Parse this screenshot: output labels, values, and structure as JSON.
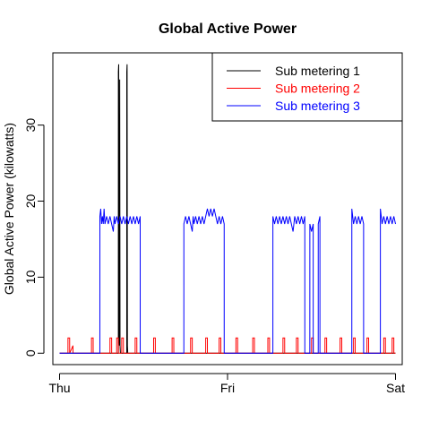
{
  "chart_data": {
    "type": "line",
    "title": "Global Active Power",
    "xlabel": "",
    "ylabel": "Global Active Power (kilowatts)",
    "x_tick_labels": [
      "Thu",
      "Fri",
      "Sat"
    ],
    "x_ticks": [
      0,
      1,
      2
    ],
    "y_ticks": [
      0,
      10,
      20,
      30
    ],
    "xlim": [
      -0.04,
      2.04
    ],
    "ylim": [
      -1.5,
      39.5
    ],
    "grid": false,
    "legend_position": "top-right",
    "series": [
      {
        "name": "Sub metering 1",
        "color": "#000000",
        "points": [
          [
            0.0,
            0
          ],
          [
            0.3499,
            0
          ],
          [
            0.35,
            37
          ],
          [
            0.352,
            38
          ],
          [
            0.354,
            2
          ],
          [
            0.356,
            1
          ],
          [
            0.358,
            36
          ],
          [
            0.36,
            1
          ],
          [
            0.362,
            0
          ],
          [
            0.3999,
            0
          ],
          [
            0.4,
            37
          ],
          [
            0.402,
            38
          ],
          [
            0.404,
            1
          ],
          [
            0.406,
            0
          ],
          [
            2.0,
            0
          ]
        ]
      },
      {
        "name": "Sub metering 2",
        "color": "#ff0000",
        "points": [
          [
            0.0,
            0
          ],
          [
            0.0499,
            0
          ],
          [
            0.05,
            2
          ],
          [
            0.06,
            2
          ],
          [
            0.0601,
            0
          ],
          [
            0.0799,
            1
          ],
          [
            0.0799,
            0
          ],
          [
            0.1899,
            0
          ],
          [
            0.19,
            2
          ],
          [
            0.2,
            2
          ],
          [
            0.2001,
            0
          ],
          [
            0.2999,
            0
          ],
          [
            0.3,
            2
          ],
          [
            0.31,
            2
          ],
          [
            0.3101,
            0
          ],
          [
            0.3399,
            0
          ],
          [
            0.34,
            2
          ],
          [
            0.35,
            2
          ],
          [
            0.3501,
            0
          ],
          [
            0.3699,
            0
          ],
          [
            0.37,
            2
          ],
          [
            0.38,
            2
          ],
          [
            0.3801,
            0
          ],
          [
            0.4499,
            0
          ],
          [
            0.45,
            2
          ],
          [
            0.46,
            2
          ],
          [
            0.4601,
            0
          ],
          [
            0.5599,
            0
          ],
          [
            0.56,
            2
          ],
          [
            0.57,
            2
          ],
          [
            0.5701,
            0
          ],
          [
            0.6699,
            0
          ],
          [
            0.67,
            2
          ],
          [
            0.68,
            2
          ],
          [
            0.6801,
            0
          ],
          [
            0.7799,
            0
          ],
          [
            0.78,
            2
          ],
          [
            0.79,
            2
          ],
          [
            0.7901,
            0
          ],
          [
            0.8699,
            0
          ],
          [
            0.87,
            2
          ],
          [
            0.88,
            2
          ],
          [
            0.8801,
            0
          ],
          [
            0.9499,
            0
          ],
          [
            0.95,
            2
          ],
          [
            0.96,
            2
          ],
          [
            0.9601,
            0
          ],
          [
            1.0499,
            0
          ],
          [
            1.05,
            2
          ],
          [
            1.06,
            2
          ],
          [
            1.0601,
            0
          ],
          [
            1.1499,
            0
          ],
          [
            1.15,
            2
          ],
          [
            1.16,
            2
          ],
          [
            1.1601,
            0
          ],
          [
            1.2399,
            0
          ],
          [
            1.24,
            2
          ],
          [
            1.25,
            2
          ],
          [
            1.2501,
            0
          ],
          [
            1.3299,
            0
          ],
          [
            1.33,
            2
          ],
          [
            1.34,
            2
          ],
          [
            1.3401,
            0
          ],
          [
            1.4099,
            0
          ],
          [
            1.41,
            2
          ],
          [
            1.42,
            2
          ],
          [
            1.4201,
            0
          ],
          [
            1.4999,
            0
          ],
          [
            1.5,
            2
          ],
          [
            1.51,
            2
          ],
          [
            1.5101,
            0
          ],
          [
            1.5799,
            0
          ],
          [
            1.58,
            2
          ],
          [
            1.59,
            2
          ],
          [
            1.5901,
            0
          ],
          [
            1.6699,
            0
          ],
          [
            1.67,
            2
          ],
          [
            1.68,
            2
          ],
          [
            1.6801,
            0
          ],
          [
            1.7499,
            0
          ],
          [
            1.75,
            2
          ],
          [
            1.76,
            2
          ],
          [
            1.7601,
            0
          ],
          [
            1.8299,
            0
          ],
          [
            1.83,
            2
          ],
          [
            1.84,
            2
          ],
          [
            1.8401,
            0
          ],
          [
            1.9299,
            0
          ],
          [
            1.93,
            2
          ],
          [
            1.94,
            2
          ],
          [
            1.9401,
            0
          ],
          [
            1.9799,
            0
          ],
          [
            1.98,
            2
          ],
          [
            1.99,
            2
          ],
          [
            1.9901,
            0
          ],
          [
            2.0,
            0
          ]
        ]
      },
      {
        "name": "Sub metering 3",
        "color": "#0000ff",
        "points": [
          [
            0.0,
            0
          ],
          [
            0.2399,
            0
          ],
          [
            0.24,
            18
          ],
          [
            0.245,
            19
          ],
          [
            0.25,
            17
          ],
          [
            0.255,
            18
          ],
          [
            0.26,
            17
          ],
          [
            0.265,
            19
          ],
          [
            0.27,
            17
          ],
          [
            0.28,
            18
          ],
          [
            0.29,
            17
          ],
          [
            0.3,
            18
          ],
          [
            0.31,
            17
          ],
          [
            0.32,
            16
          ],
          [
            0.325,
            18
          ],
          [
            0.33,
            17
          ],
          [
            0.34,
            18
          ],
          [
            0.35,
            17
          ],
          [
            0.36,
            18
          ],
          [
            0.37,
            17
          ],
          [
            0.38,
            18
          ],
          [
            0.39,
            17
          ],
          [
            0.4,
            18
          ],
          [
            0.41,
            17
          ],
          [
            0.42,
            18
          ],
          [
            0.43,
            17
          ],
          [
            0.44,
            18
          ],
          [
            0.45,
            17
          ],
          [
            0.46,
            18
          ],
          [
            0.47,
            17
          ],
          [
            0.48,
            18
          ],
          [
            0.4801,
            0
          ],
          [
            0.7399,
            0
          ],
          [
            0.74,
            17
          ],
          [
            0.75,
            18
          ],
          [
            0.76,
            17
          ],
          [
            0.77,
            18
          ],
          [
            0.78,
            17
          ],
          [
            0.79,
            16
          ],
          [
            0.795,
            18
          ],
          [
            0.8,
            17
          ],
          [
            0.81,
            18
          ],
          [
            0.82,
            17
          ],
          [
            0.83,
            18
          ],
          [
            0.84,
            17
          ],
          [
            0.85,
            18
          ],
          [
            0.86,
            17
          ],
          [
            0.87,
            18
          ],
          [
            0.88,
            19
          ],
          [
            0.89,
            18
          ],
          [
            0.9,
            19
          ],
          [
            0.91,
            18
          ],
          [
            0.92,
            19
          ],
          [
            0.93,
            18
          ],
          [
            0.94,
            17
          ],
          [
            0.95,
            18
          ],
          [
            0.96,
            17
          ],
          [
            0.97,
            18
          ],
          [
            0.98,
            17
          ],
          [
            0.9801,
            0
          ],
          [
            1.2699,
            0
          ],
          [
            1.27,
            18
          ],
          [
            1.28,
            17
          ],
          [
            1.29,
            18
          ],
          [
            1.3,
            17
          ],
          [
            1.31,
            18
          ],
          [
            1.32,
            17
          ],
          [
            1.33,
            18
          ],
          [
            1.34,
            17
          ],
          [
            1.35,
            18
          ],
          [
            1.36,
            17
          ],
          [
            1.37,
            18
          ],
          [
            1.38,
            17
          ],
          [
            1.39,
            16
          ],
          [
            1.4,
            18
          ],
          [
            1.41,
            17
          ],
          [
            1.42,
            18
          ],
          [
            1.43,
            17
          ],
          [
            1.44,
            18
          ],
          [
            1.45,
            17
          ],
          [
            1.46,
            18
          ],
          [
            1.4601,
            0
          ],
          [
            1.4899,
            0
          ],
          [
            1.49,
            17
          ],
          [
            1.5,
            16
          ],
          [
            1.51,
            17
          ],
          [
            1.5101,
            0
          ],
          [
            1.5399,
            0
          ],
          [
            1.54,
            17
          ],
          [
            1.55,
            18
          ],
          [
            1.5501,
            0
          ],
          [
            1.7399,
            0
          ],
          [
            1.74,
            19
          ],
          [
            1.75,
            17
          ],
          [
            1.76,
            18
          ],
          [
            1.77,
            17
          ],
          [
            1.78,
            18
          ],
          [
            1.79,
            17
          ],
          [
            1.8,
            18
          ],
          [
            1.81,
            17
          ],
          [
            1.8101,
            0
          ],
          [
            1.9099,
            0
          ],
          [
            1.91,
            19
          ],
          [
            1.92,
            17
          ],
          [
            1.93,
            18
          ],
          [
            1.94,
            17
          ],
          [
            1.95,
            18
          ],
          [
            1.96,
            17
          ],
          [
            1.97,
            18
          ],
          [
            1.98,
            17
          ],
          [
            1.99,
            18
          ],
          [
            2.0,
            17
          ]
        ]
      }
    ]
  }
}
